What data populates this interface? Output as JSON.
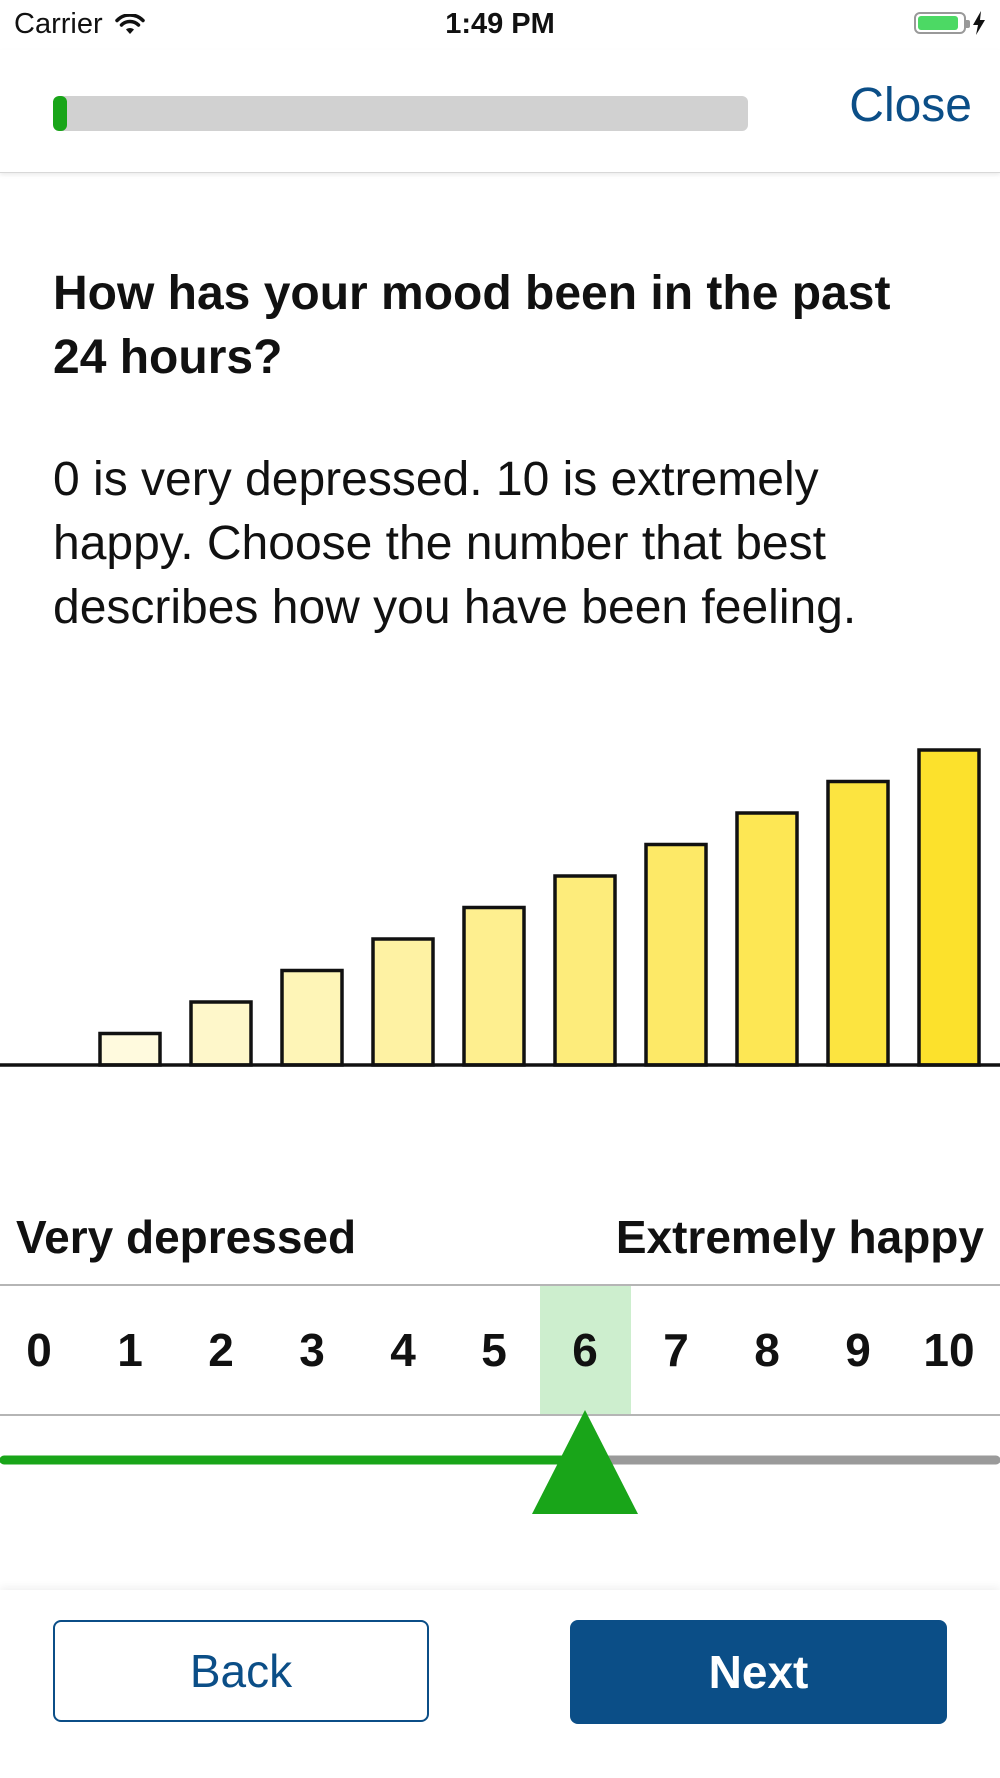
{
  "status_bar": {
    "carrier": "Carrier",
    "time": "1:49 PM",
    "battery_color": "#4cd964"
  },
  "nav": {
    "progress": 0.02,
    "progress_color": "#19a519",
    "close_label": "Close"
  },
  "question": {
    "title": "How has your mood been in the past 24 hours?",
    "instructions": "0 is very depressed. 10 is extremely happy. Choose the number that best describes how you have been feeling."
  },
  "scale": {
    "min_label": "Very depressed",
    "max_label": "Extremely happy",
    "numbers": [
      "0",
      "1",
      "2",
      "3",
      "4",
      "5",
      "6",
      "7",
      "8",
      "9",
      "10"
    ],
    "selected": 6,
    "selected_bg": "#cdeece",
    "slider_active_color": "#19a519",
    "slider_inactive_color": "#9a9a9a"
  },
  "footer": {
    "back_label": "Back",
    "next_label": "Next",
    "brand_color": "#0b4e87"
  }
}
